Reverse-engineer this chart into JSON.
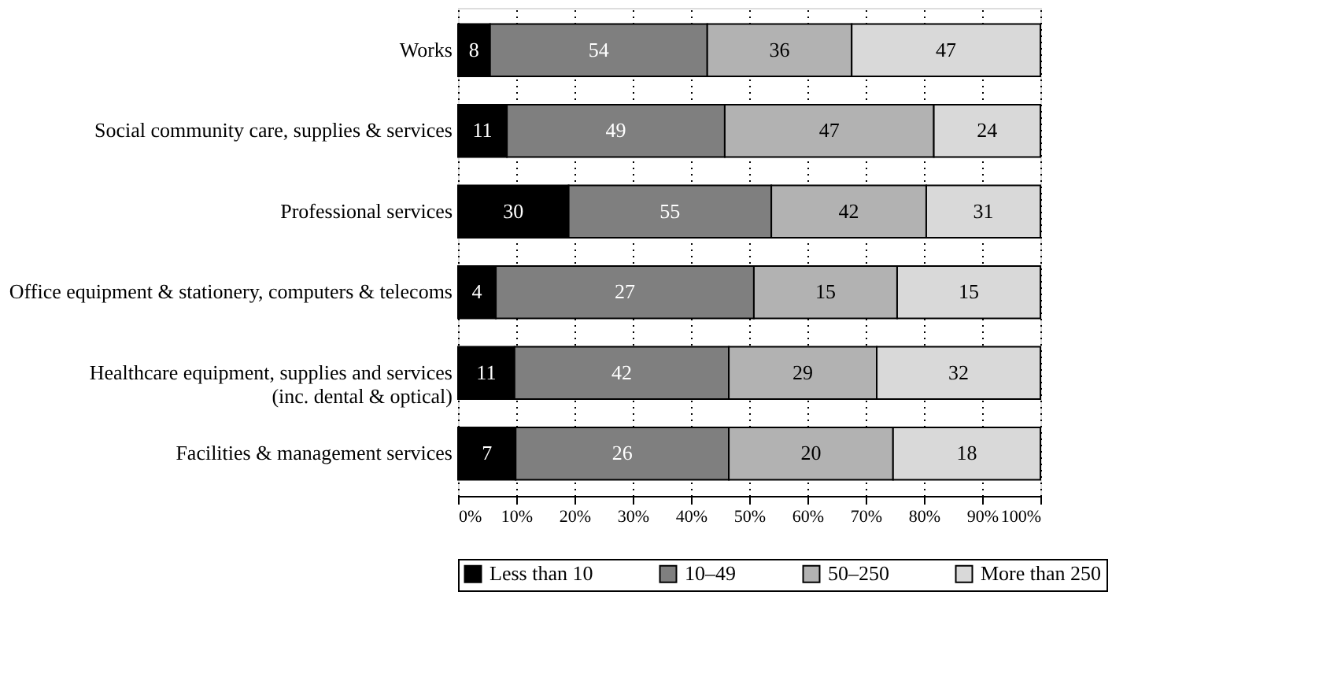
{
  "chart_data": {
    "type": "bar",
    "orientation": "horizontal",
    "stacked": true,
    "categories": [
      "Works",
      "Social community care, supplies & services",
      "Professional services",
      "Office equipment & stationery, computers & telecoms",
      "Healthcare equipment, supplies and services\n(inc. dental & optical)",
      "Facilities & management services"
    ],
    "series": [
      {
        "name": "Less than 10",
        "color": "#000000",
        "values": [
          5.5,
          8.4,
          19.0,
          6.5,
          9.7,
          9.9
        ]
      },
      {
        "name": "10–49",
        "color": "#7f7f7f",
        "values": [
          37.3,
          37.4,
          34.8,
          44.3,
          36.8,
          36.6
        ]
      },
      {
        "name": "50–250",
        "color": "#b2b2b2",
        "values": [
          24.8,
          35.9,
          26.6,
          24.6,
          25.4,
          28.2
        ]
      },
      {
        "name": "More than 250",
        "color": "#d9d9d9",
        "values": [
          32.4,
          18.3,
          19.6,
          24.6,
          28.1,
          25.3
        ]
      }
    ],
    "annotations": [
      "8",
      "54",
      "36",
      "47",
      "11",
      "49",
      "47",
      "24",
      "30",
      "55",
      "42",
      "31",
      "4",
      "27",
      "15",
      "15",
      "11",
      "42",
      "29",
      "32",
      "7",
      "26",
      "20",
      "18"
    ],
    "xlim": [
      0,
      100
    ],
    "xticks": [
      {
        "value": 0,
        "label": "0%"
      },
      {
        "value": 10,
        "label": "10%"
      },
      {
        "value": 20,
        "label": "20%"
      },
      {
        "value": 30,
        "label": "30%"
      },
      {
        "value": 40,
        "label": "40%"
      },
      {
        "value": 50,
        "label": "50%"
      },
      {
        "value": 60,
        "label": "60%"
      },
      {
        "value": 70,
        "label": "70%"
      },
      {
        "value": 80,
        "label": "80%"
      },
      {
        "value": 90,
        "label": "90%"
      },
      {
        "value": 100,
        "label": "100%"
      }
    ],
    "grid": "x",
    "legend": "bottom"
  }
}
